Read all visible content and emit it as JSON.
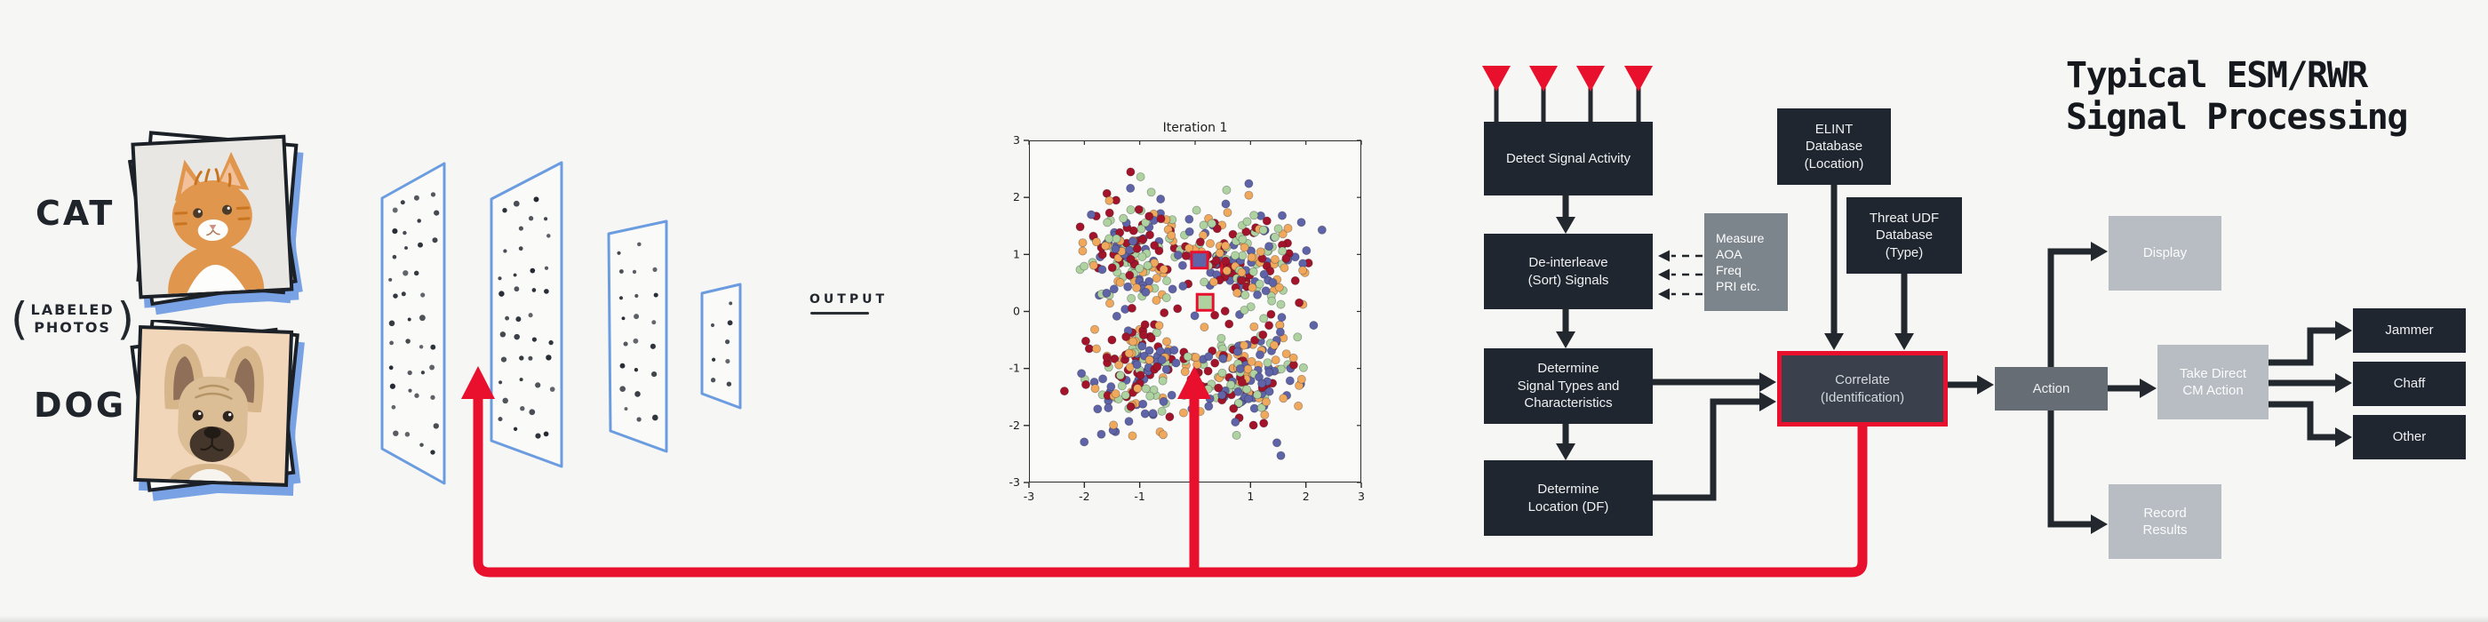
{
  "labels": {
    "cat": "CAT",
    "labeled_paren_open": "(",
    "labeled_line1": "LABELED",
    "labeled_line2": "PHOTOS",
    "labeled_paren_close": ")",
    "dog": "DOG",
    "output": "OUTPUT"
  },
  "network": {
    "description": "hand-drawn neural network with 4 sheet layers of unit dots",
    "layer_count": 4
  },
  "chart_data": {
    "type": "scatter",
    "title": "Iteration 1",
    "xlabel": "",
    "ylabel": "",
    "xlim": [
      -3,
      3
    ],
    "ylim": [
      -3,
      3
    ],
    "x_ticks": [
      -3,
      -2,
      -1,
      0,
      1,
      2,
      3
    ],
    "y_ticks": [
      -3,
      -2,
      -1,
      0,
      1,
      2,
      3
    ],
    "grid": false,
    "legend": "none",
    "palette": {
      "orange": "#F0A95C",
      "crimson": "#A31329",
      "purple": "#5F63A8",
      "green": "#AFD3A0"
    },
    "clusters": [
      {
        "center": [
          -1.05,
          1.0
        ],
        "std": [
          0.52,
          0.45
        ],
        "n": 170
      },
      {
        "center": [
          0.95,
          0.95
        ],
        "std": [
          0.52,
          0.45
        ],
        "n": 170
      },
      {
        "center": [
          -0.95,
          -1.05
        ],
        "std": [
          0.52,
          0.45
        ],
        "n": 170
      },
      {
        "center": [
          1.0,
          -1.05
        ],
        "std": [
          0.55,
          0.45
        ],
        "n": 170
      }
    ],
    "point_color_assignment": "random among palette (k-means iteration 1)",
    "centroid_markers": [
      {
        "x": 0.62,
        "y": 0.72,
        "color_key": "crimson",
        "layer": "under"
      },
      {
        "x": 0.08,
        "y": 0.9,
        "color_key": "purple",
        "layer": "over"
      },
      {
        "x": 0.18,
        "y": 0.16,
        "color_key": "green",
        "layer": "over"
      }
    ],
    "seed": 7
  },
  "flowchart": {
    "title": "Typical ESM/RWR\nSignal Processing",
    "antenna_count": 4,
    "nodes": {
      "detect": {
        "label": "Detect Signal Activity"
      },
      "deinterleave": {
        "label": "De-interleave\n(Sort) Signals"
      },
      "measure": {
        "label": "Measure\nAOA\nFreq\nPRI etc."
      },
      "types": {
        "label": "Determine\nSignal Types and\nCharacteristics"
      },
      "location": {
        "label": "Determine\nLocation (DF)"
      },
      "elint": {
        "label": "ELINT\nDatabase\n(Location)"
      },
      "threat": {
        "label": "Threat UDF\nDatabase\n(Type)"
      },
      "correlate": {
        "label": "Correlate\n(Identification)"
      },
      "action": {
        "label": "Action"
      },
      "display": {
        "label": "Display"
      },
      "take_direct": {
        "label": "Take Direct\nCM Action"
      },
      "jammer": {
        "label": "Jammer"
      },
      "chaff": {
        "label": "Chaff"
      },
      "other": {
        "label": "Other"
      },
      "record": {
        "label": "Record\nResults"
      }
    }
  },
  "colors": {
    "accent_red": "#E8102D",
    "box_dark": "#20262F",
    "box_charcoal": "#3A414C",
    "box_gray_medium": "#7C848C",
    "box_gray_action": "#666D75",
    "box_gray_light": "#B8BDC3",
    "connector_dark": "#23282F",
    "network_blue": "#6C9CE0",
    "background": "#F6F6F4"
  }
}
